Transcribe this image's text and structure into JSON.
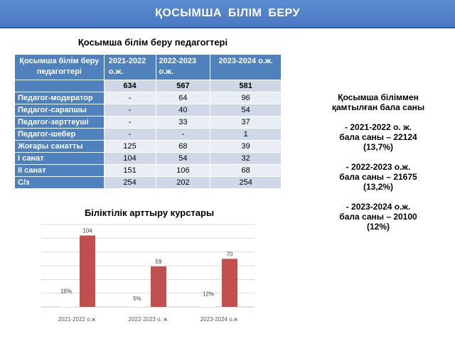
{
  "header": {
    "title": "ҚОСЫМША  БІЛІМ  БЕРУ"
  },
  "table": {
    "title": "Қосымша білім беру педагогтері",
    "headers": [
      "Қосымша білім беру педагогтері",
      "2021-2022 о.ж.",
      "2022-2023 о.ж.",
      "2023-2024 о.ж."
    ],
    "totals": [
      "634",
      "567",
      "581"
    ],
    "rows": [
      {
        "label": "Педагог-модератор",
        "values": [
          "-",
          "64",
          "96"
        ]
      },
      {
        "label": "Педагог-сарапшы",
        "values": [
          "-",
          "40",
          "54"
        ]
      },
      {
        "label": "Педагог-зерттеуші",
        "values": [
          "-",
          "33",
          "37"
        ]
      },
      {
        "label": "Педагог-шебер",
        "values": [
          "-",
          "-",
          "1"
        ]
      },
      {
        "label": "Жоғары санатты",
        "values": [
          "125",
          "68",
          "39"
        ]
      },
      {
        "label": "I санат",
        "values": [
          "104",
          "54",
          "32"
        ]
      },
      {
        "label": "II санат",
        "values": [
          "151",
          "106",
          "68"
        ]
      },
      {
        "label": "С/з",
        "values": [
          "254",
          "202",
          "254"
        ]
      }
    ]
  },
  "summary": {
    "heading1": "Қосымша біліммен",
    "heading2": "қамтылған бала саны",
    "items": [
      {
        "line1": "- 2021-2022 о. ж.",
        "line2": "бала саны – 22124",
        "line3": "(13,7%)"
      },
      {
        "line1": "- 2022-2023 о.ж.",
        "line2": "бала саны – 21675",
        "line3": "(13,2%)"
      },
      {
        "line1": "- 2023-2024 о.ж.",
        "line2": "бала саны – 20100",
        "line3": "(12%)"
      }
    ]
  },
  "chart_data": {
    "type": "bar",
    "title": "Біліктілік арттыру  курстары",
    "categories": [
      "2021-2022 о.ж",
      "2022-2023 о. ж",
      "2023-2024 о.ж"
    ],
    "series": [
      {
        "values": [
          16,
          5,
          12
        ],
        "labels": [
          "16%",
          "5%",
          "12%"
        ],
        "color": "#ffffff"
      },
      {
        "values": [
          104,
          59,
          70
        ],
        "labels": [
          "104",
          "59",
          "70"
        ],
        "color": "#c0504d"
      }
    ],
    "ylim": [
      0,
      120
    ],
    "grid": true,
    "legend": "none"
  }
}
